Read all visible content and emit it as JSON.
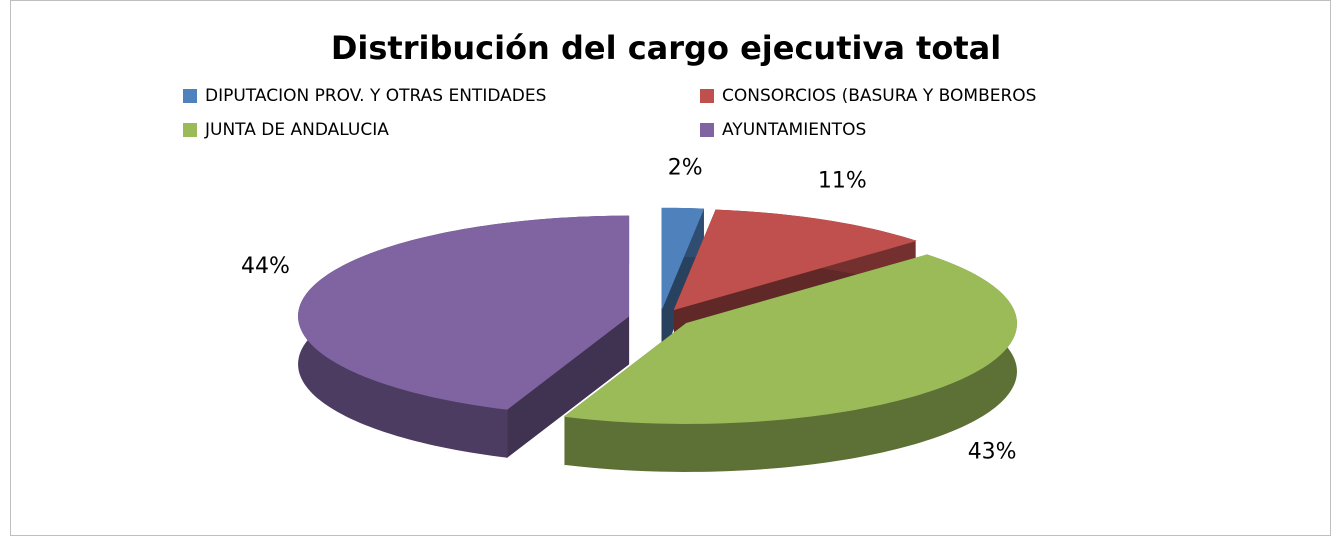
{
  "chart_data": {
    "type": "pie",
    "title": "Distribución del cargo ejecutiva total",
    "categories": [
      "DIPUTACION PROV. Y OTRAS ENTIDADES",
      "CONSORCIOS (BASURA Y BOMBEROS",
      "JUNTA DE ANDALUCIA",
      "AYUNTAMIENTOS"
    ],
    "values": [
      2,
      11,
      43,
      44
    ],
    "value_labels": [
      "2%",
      "11%",
      "43%",
      "44%"
    ],
    "colors": [
      "#4f81bd",
      "#c0504d",
      "#9bbb59",
      "#8064a2"
    ]
  }
}
